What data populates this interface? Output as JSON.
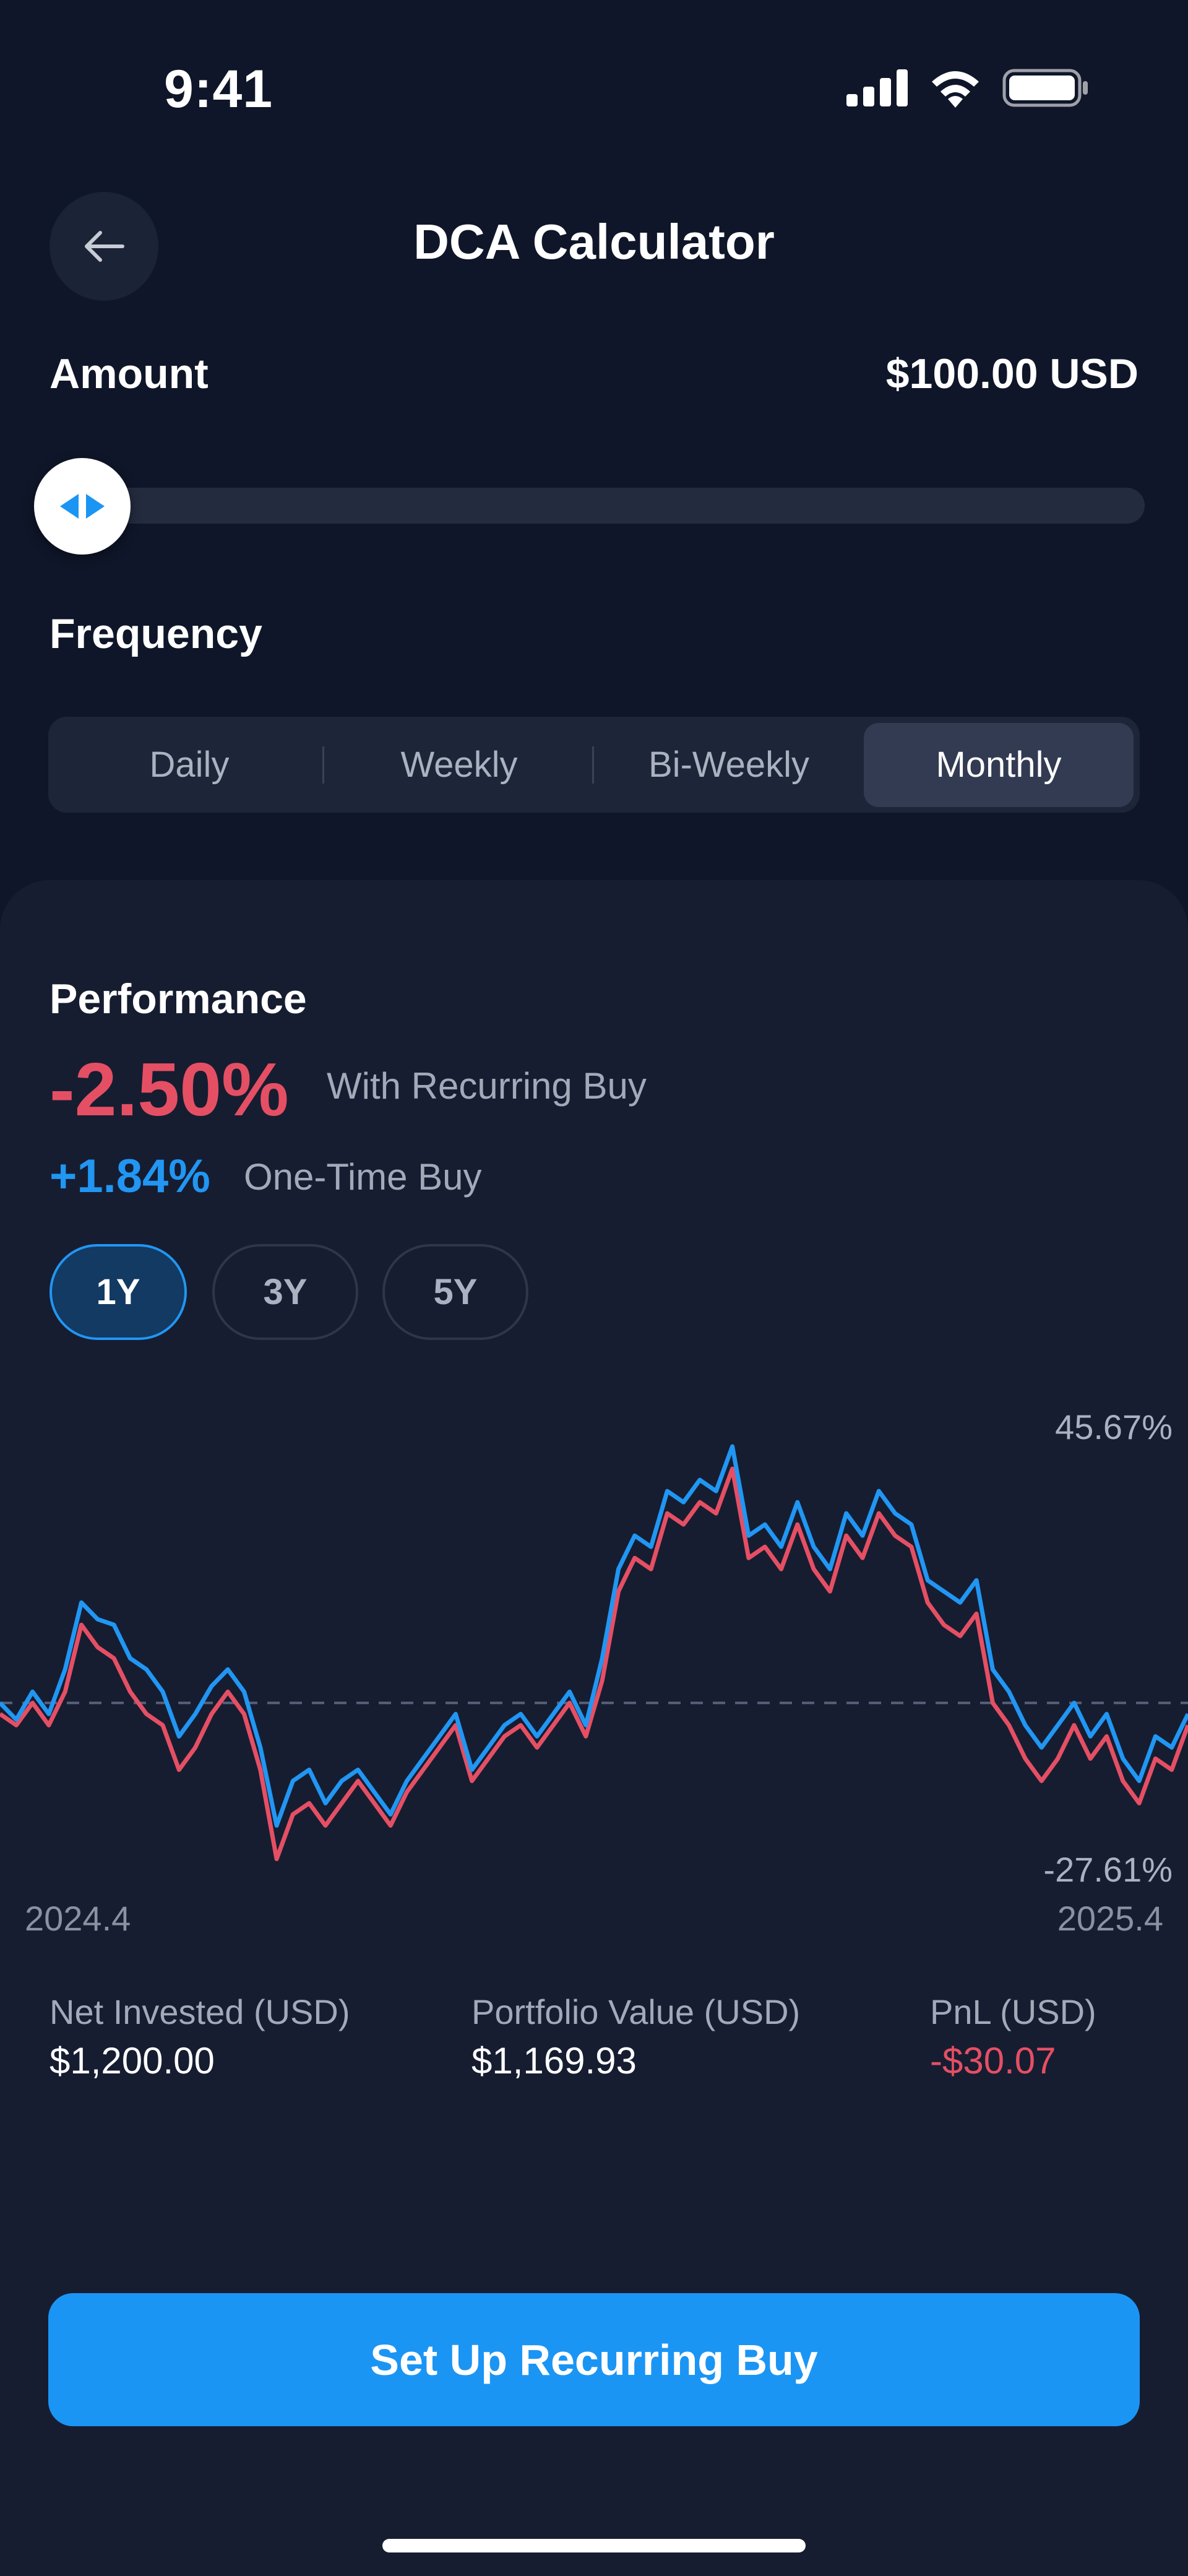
{
  "status_bar": {
    "time": "9:41",
    "icons": [
      "signal-icon",
      "wifi-icon",
      "battery-icon"
    ]
  },
  "header": {
    "title": "DCA Calculator",
    "back_icon": "arrow-left-icon"
  },
  "amount": {
    "label": "Amount",
    "value": "$100.00 USD",
    "slider_fraction": 0.0
  },
  "frequency": {
    "label": "Frequency",
    "options": [
      "Daily",
      "Weekly",
      "Bi-Weekly",
      "Monthly"
    ],
    "selected": "Monthly"
  },
  "performance": {
    "title": "Performance",
    "recurring_pct": "-2.50%",
    "recurring_label": "With Recurring Buy",
    "onetime_pct": "+1.84%",
    "onetime_label": "One-Time Buy",
    "ranges": [
      "1Y",
      "3Y",
      "5Y"
    ],
    "selected_range": "1Y"
  },
  "chart_data": {
    "type": "line",
    "x_start_label": "2024.4",
    "x_end_label": "2025.4",
    "max_label": "45.67%",
    "min_label": "-27.61%",
    "ylim": [
      -27.61,
      45.67
    ],
    "baseline": 0,
    "series": [
      {
        "color": "#2196f3",
        "values": [
          0,
          -3,
          2,
          -2,
          6,
          18,
          15,
          14,
          8,
          6,
          2,
          -6,
          -2,
          3,
          6,
          2,
          -8,
          -22,
          -14,
          -12,
          -18,
          -14,
          -12,
          -16,
          -20,
          -14,
          -10,
          -6,
          -2,
          -12,
          -8,
          -4,
          -2,
          -6,
          -2,
          2,
          -4,
          8,
          24,
          30,
          28,
          38,
          36,
          40,
          38,
          46,
          30,
          32,
          28,
          36,
          28,
          24,
          34,
          30,
          38,
          34,
          32,
          22,
          20,
          18,
          22,
          6,
          2,
          -4,
          -8,
          -4,
          0,
          -6,
          -2,
          -10,
          -14,
          -6,
          -8,
          -2
        ],
        "colors_note": ""
      },
      {
        "color": "#e54f64",
        "values": [
          -2,
          -4,
          0,
          -4,
          2,
          14,
          10,
          8,
          2,
          -2,
          -4,
          -12,
          -8,
          -2,
          2,
          -2,
          -12,
          -28,
          -20,
          -18,
          -22,
          -18,
          -14,
          -18,
          -22,
          -16,
          -12,
          -8,
          -4,
          -14,
          -10,
          -6,
          -4,
          -8,
          -4,
          0,
          -6,
          4,
          20,
          26,
          24,
          34,
          32,
          36,
          34,
          42,
          26,
          28,
          24,
          32,
          24,
          20,
          30,
          26,
          34,
          30,
          28,
          18,
          14,
          12,
          16,
          0,
          -4,
          -10,
          -14,
          -10,
          -4,
          -10,
          -6,
          -14,
          -18,
          -10,
          -12,
          -4
        ],
        "colors_note": ""
      }
    ]
  },
  "stats": [
    {
      "label": "Net Invested (USD)",
      "value": "$1,200.00",
      "negative": false
    },
    {
      "label": "Portfolio Value (USD)",
      "value": "$1,169.93",
      "negative": false
    },
    {
      "label": "PnL (USD)",
      "value": "-$30.07",
      "negative": true
    }
  ],
  "cta": {
    "label": "Set Up Recurring Buy"
  }
}
